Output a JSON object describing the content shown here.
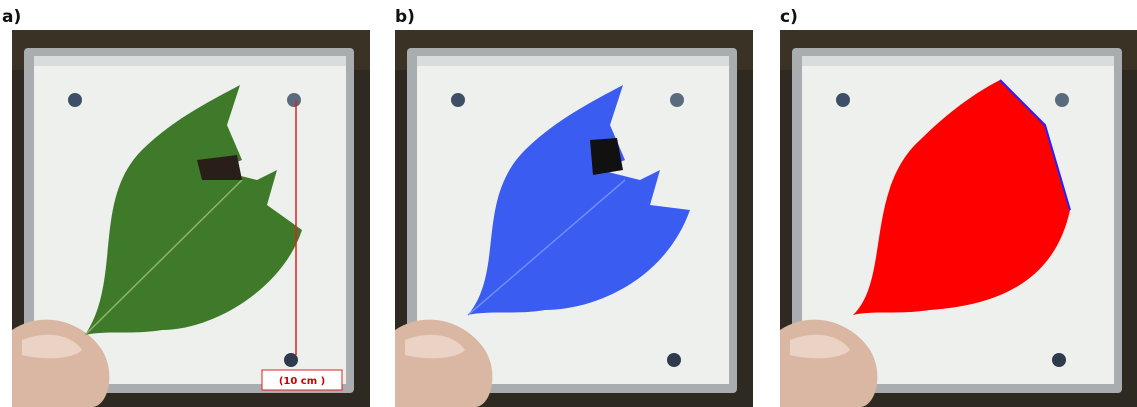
{
  "panels": [
    {
      "label": "a)",
      "annotation": "(10 cm )"
    },
    {
      "label": "b)"
    },
    {
      "label": "c)"
    }
  ]
}
